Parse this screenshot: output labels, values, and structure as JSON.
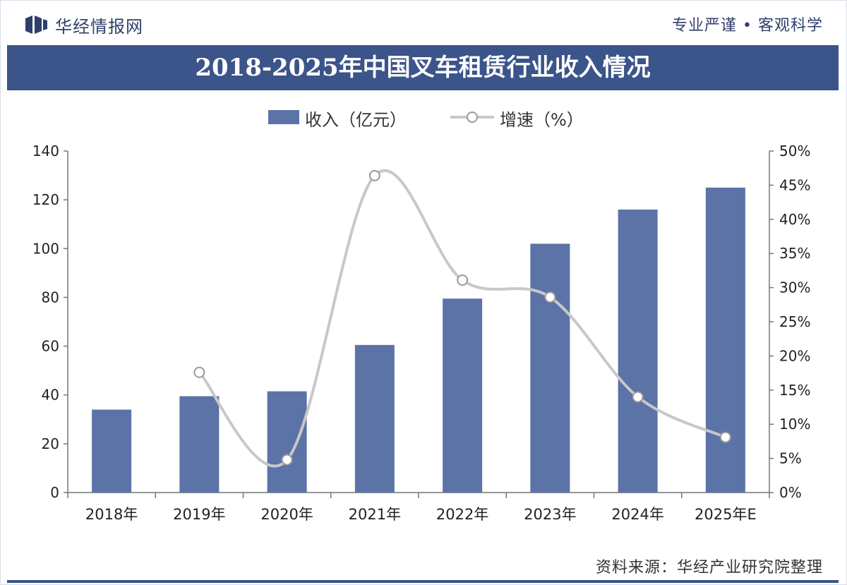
{
  "header": {
    "brand": "华经情报网",
    "slogan": "专业严谨 • 客观科学"
  },
  "colors": {
    "accent": "#3b5489",
    "bar": "#5b73a6",
    "line": "#c8c8c8"
  },
  "chart_data": {
    "type": "bar",
    "title": "2018-2025年中国叉车租赁行业收入情况",
    "categories": [
      "2018年",
      "2019年",
      "2020年",
      "2021年",
      "2022年",
      "2023年",
      "2024年",
      "2025年E"
    ],
    "series": [
      {
        "name": "收入（亿元）",
        "type": "bar",
        "axis": "left",
        "values": [
          34,
          39.5,
          41.5,
          60.5,
          79.5,
          102,
          116,
          125
        ]
      },
      {
        "name": "增速（%）",
        "type": "line",
        "axis": "right",
        "values": [
          null,
          17.6,
          4.8,
          46.4,
          31.1,
          28.6,
          14.0,
          8.1
        ]
      }
    ],
    "y_left": {
      "min": 0,
      "max": 140,
      "ticks": [
        "0",
        "20",
        "40",
        "60",
        "80",
        "100",
        "120",
        "140"
      ]
    },
    "y_right": {
      "min": 0,
      "max": 50,
      "ticks": [
        "0%",
        "5%",
        "10%",
        "15%",
        "20%",
        "25%",
        "30%",
        "35%",
        "40%",
        "45%",
        "50%"
      ]
    },
    "legend_position": "top",
    "grid": false
  },
  "source": "资料来源：华经产业研究院整理"
}
